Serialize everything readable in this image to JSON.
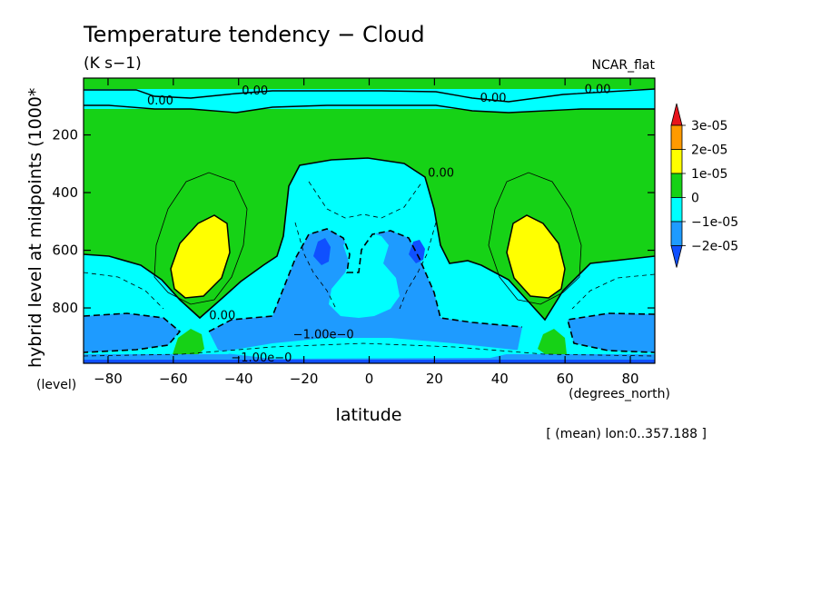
{
  "chart_data": {
    "type": "heatmap",
    "title": "Temperature tendency − Cloud",
    "units": "(K s−1)",
    "colormap_name": "NCAR_flat",
    "xlabel": "latitude",
    "x_units": "(degrees_north)",
    "ylabel": "hybrid level at midpoints (1000*",
    "y_units": "(level)",
    "footnote": "[ (mean) lon:0..357.188 ]",
    "xlim": [
      -87.5,
      87.5
    ],
    "ylim": [
      992,
      3
    ],
    "x_ticks": [
      -80,
      -60,
      -40,
      -20,
      0,
      20,
      40,
      60,
      80
    ],
    "y_ticks": [
      200,
      400,
      600,
      800
    ],
    "legend": {
      "levels": [
        "3e-05",
        "2e-05",
        "1e-05",
        "0",
        "−1e-05",
        "−2e-05"
      ],
      "colors": [
        "#e8141c",
        "#ff9a00",
        "#ffff00",
        "#16d216",
        "#00ffff",
        "#1e9bff",
        "#0f50ff"
      ]
    },
    "contour_labels": [
      {
        "text": "0.00",
        "lat": -64,
        "lev": 95
      },
      {
        "text": "0.00",
        "lat": -35,
        "lev": 60
      },
      {
        "text": "0.00",
        "lat": 38,
        "lev": 85
      },
      {
        "text": "0.00",
        "lat": 70,
        "lev": 55
      },
      {
        "text": "0.00",
        "lat": 22,
        "lev": 345
      },
      {
        "text": "0.00",
        "lat": -45,
        "lev": 840
      },
      {
        "text": "−1.00e−0",
        "lat": -14,
        "lev": 905
      },
      {
        "text": "−1.00e−0",
        "lat": -33,
        "lev": 985
      }
    ],
    "regions": [
      {
        "value_range": "0 to 1e-05",
        "lat": [
          -87.5,
          87.5
        ],
        "lev": [
          100,
          620
        ],
        "note": "background positive band"
      },
      {
        "value_range": "1e-05 to 2e-05",
        "lat": -52,
        "lev": 600,
        "note": "southern midlatitude maximum"
      },
      {
        "value_range": "1e-05 to 2e-05",
        "lat": 52,
        "lev": 600,
        "note": "northern midlatitude maximum"
      },
      {
        "value_range": "-1e-05 to 0",
        "lat": [
          -30,
          30
        ],
        "lev": [
          300,
          992
        ],
        "note": "tropical cooling"
      },
      {
        "value_range": "-2e-05 to -1e-05",
        "lat": -15,
        "lev": 620,
        "note": "southern tropical minimum"
      },
      {
        "value_range": "-2e-05 to -1e-05",
        "lat": 15,
        "lev": 620,
        "note": "northern tropical minimum"
      },
      {
        "value_range": "-1e-05 to 0",
        "lat": [
          -87.5,
          87.5
        ],
        "lev": [
          30,
          100
        ],
        "note": "upper-level band"
      }
    ]
  }
}
